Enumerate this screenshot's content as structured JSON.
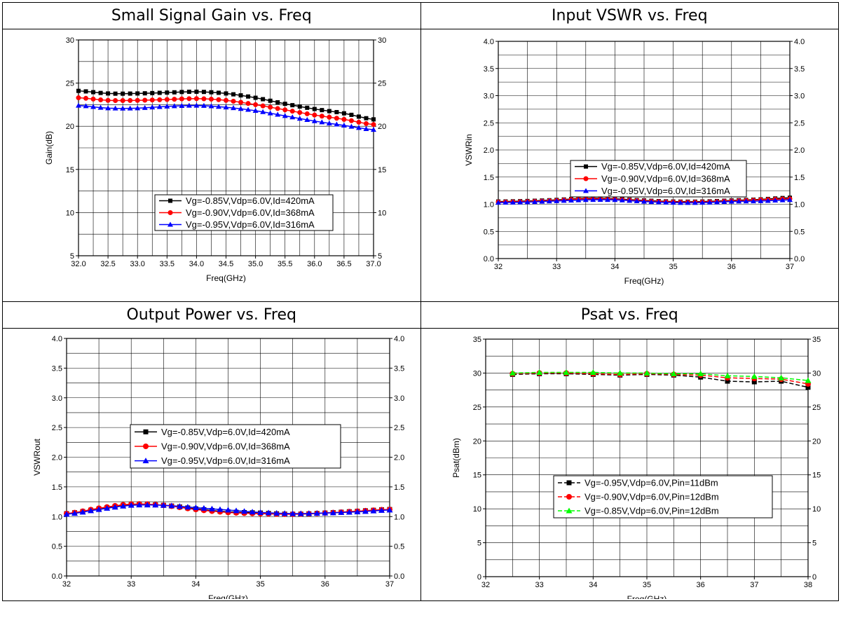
{
  "panels": [
    {
      "title": "Small Signal Gain vs. Freq"
    },
    {
      "title": "Input VSWR vs. Freq"
    },
    {
      "title": "Output Power vs. Freq"
    },
    {
      "title": "Psat vs. Freq"
    }
  ],
  "chart_data": [
    {
      "type": "line",
      "xlabel": "Freq(GHz)",
      "ylabel": "Gain(dB)",
      "xlim": [
        32.0,
        37.0
      ],
      "ylim": [
        5,
        30
      ],
      "xticks": [
        32.0,
        32.5,
        33.0,
        33.5,
        34.0,
        34.5,
        35.0,
        35.5,
        36.0,
        36.5,
        37.0
      ],
      "xtick_labels": [
        "32.0",
        "32.5",
        "33.0",
        "33.5",
        "34.0",
        "34.5",
        "35.0",
        "35.5",
        "36.0",
        "36.5",
        "37.0"
      ],
      "yticks": [
        5,
        10,
        15,
        20,
        25,
        30
      ],
      "ytick_labels": [
        "5",
        "10",
        "15",
        "20",
        "25",
        "30"
      ],
      "grid": true,
      "legend_position": "center",
      "series": [
        {
          "name": "Vg=-0.85V,Vdp=6.0V,Id=420mA",
          "color": "#000000",
          "marker": "square",
          "x": [
            32.0,
            32.5,
            33.0,
            33.5,
            34.0,
            34.5,
            35.0,
            35.5,
            36.0,
            36.5,
            37.0
          ],
          "y": [
            24.1,
            23.8,
            23.8,
            23.9,
            24.0,
            23.8,
            23.3,
            22.6,
            22.0,
            21.5,
            20.8
          ]
        },
        {
          "name": "Vg=-0.90V,Vdp=6.0V,Id=368mA",
          "color": "#ff0000",
          "marker": "circle",
          "x": [
            32.0,
            32.5,
            33.0,
            33.5,
            34.0,
            34.5,
            35.0,
            35.5,
            36.0,
            36.5,
            37.0
          ],
          "y": [
            23.3,
            23.0,
            23.0,
            23.1,
            23.2,
            23.0,
            22.5,
            21.9,
            21.3,
            20.8,
            20.2
          ]
        },
        {
          "name": "Vg=-0.95V,Vdp=6.0V,Id=316mA",
          "color": "#0000ff",
          "marker": "triangle",
          "x": [
            32.0,
            32.5,
            33.0,
            33.5,
            34.0,
            34.5,
            35.0,
            35.5,
            36.0,
            36.5,
            37.0
          ],
          "y": [
            22.4,
            22.1,
            22.1,
            22.3,
            22.4,
            22.2,
            21.8,
            21.2,
            20.6,
            20.1,
            19.6
          ]
        }
      ]
    },
    {
      "type": "line",
      "xlabel": "Freq(GHz)",
      "ylabel": "VSWRin",
      "xlim": [
        32,
        37
      ],
      "ylim": [
        0.0,
        4.0
      ],
      "xticks": [
        32,
        33,
        34,
        35,
        36,
        37
      ],
      "xtick_labels": [
        "32",
        "33",
        "34",
        "35",
        "36",
        "37"
      ],
      "yticks": [
        0.0,
        0.5,
        1.0,
        1.5,
        2.0,
        2.5,
        3.0,
        3.5,
        4.0
      ],
      "ytick_labels": [
        "0.0",
        "0.5",
        "1.0",
        "1.5",
        "2.0",
        "2.5",
        "3.0",
        "3.5",
        "4.0"
      ],
      "grid": true,
      "legend_position": "upper center",
      "series": [
        {
          "name": "Vg=-0.85V,Vdp=6.0V,Id=420mA",
          "color": "#000000",
          "marker": "square",
          "x": [
            32.0,
            32.5,
            33.0,
            33.5,
            34.0,
            34.5,
            35.0,
            35.5,
            36.0,
            36.5,
            37.0
          ],
          "y": [
            1.05,
            1.06,
            1.08,
            1.11,
            1.1,
            1.07,
            1.05,
            1.05,
            1.07,
            1.09,
            1.12
          ]
        },
        {
          "name": "Vg=-0.90V,Vdp=6.0V,Id=368mA",
          "color": "#ff0000",
          "marker": "circle",
          "x": [
            32.0,
            32.5,
            33.0,
            33.5,
            34.0,
            34.5,
            35.0,
            35.5,
            36.0,
            36.5,
            37.0
          ],
          "y": [
            1.04,
            1.05,
            1.07,
            1.1,
            1.09,
            1.06,
            1.04,
            1.04,
            1.06,
            1.08,
            1.1
          ]
        },
        {
          "name": "Vg=-0.95V,Vdp=6.0V,Id=316mA",
          "color": "#0000ff",
          "marker": "triangle",
          "x": [
            32.0,
            32.5,
            33.0,
            33.5,
            34.0,
            34.5,
            35.0,
            35.5,
            36.0,
            36.5,
            37.0
          ],
          "y": [
            1.03,
            1.04,
            1.06,
            1.08,
            1.08,
            1.05,
            1.03,
            1.03,
            1.05,
            1.06,
            1.08
          ]
        }
      ]
    },
    {
      "type": "line",
      "xlabel": "Freq(GHz)",
      "ylabel": "VSWRout",
      "xlim": [
        32,
        37
      ],
      "ylim": [
        0.0,
        4.0
      ],
      "xticks": [
        32,
        33,
        34,
        35,
        36,
        37
      ],
      "xtick_labels": [
        "32",
        "33",
        "34",
        "35",
        "36",
        "37"
      ],
      "yticks": [
        0.0,
        0.5,
        1.0,
        1.5,
        2.0,
        2.5,
        3.0,
        3.5,
        4.0
      ],
      "ytick_labels": [
        "0.0",
        "0.5",
        "1.0",
        "1.5",
        "2.0",
        "2.5",
        "3.0",
        "3.5",
        "4.0"
      ],
      "grid": true,
      "legend_position": "center",
      "series": [
        {
          "name": "Vg=-0.85V,Vdp=6.0V,Id=420mA",
          "color": "#000000",
          "marker": "square",
          "x": [
            32.0,
            32.5,
            33.0,
            33.5,
            34.0,
            34.5,
            35.0,
            35.5,
            36.0,
            36.5,
            37.0
          ],
          "y": [
            1.05,
            1.13,
            1.2,
            1.19,
            1.13,
            1.08,
            1.06,
            1.04,
            1.06,
            1.09,
            1.12
          ]
        },
        {
          "name": "Vg=-0.90V,Vdp=6.0V,Id=368mA",
          "color": "#ff0000",
          "marker": "circle",
          "x": [
            32.0,
            32.5,
            33.0,
            33.5,
            34.0,
            34.5,
            35.0,
            35.5,
            36.0,
            36.5,
            37.0
          ],
          "y": [
            1.05,
            1.14,
            1.21,
            1.19,
            1.12,
            1.07,
            1.05,
            1.04,
            1.06,
            1.09,
            1.12
          ]
        },
        {
          "name": "Vg=-0.95V,Vdp=6.0V,Id=316mA",
          "color": "#0000ff",
          "marker": "triangle",
          "x": [
            32.0,
            32.5,
            33.0,
            33.5,
            34.0,
            34.5,
            35.0,
            35.5,
            36.0,
            36.5,
            37.0
          ],
          "y": [
            1.04,
            1.12,
            1.19,
            1.19,
            1.15,
            1.11,
            1.07,
            1.05,
            1.06,
            1.08,
            1.11
          ]
        }
      ]
    },
    {
      "type": "line",
      "xlabel": "Freq(GHz)",
      "ylabel": "Psat(dBm)",
      "xlim": [
        32,
        38
      ],
      "ylim": [
        0,
        35
      ],
      "xticks": [
        32,
        33,
        34,
        35,
        36,
        37,
        38
      ],
      "xtick_labels": [
        "32",
        "33",
        "34",
        "35",
        "36",
        "37",
        "38"
      ],
      "yticks": [
        0,
        5,
        10,
        15,
        20,
        25,
        30,
        35
      ],
      "ytick_labels": [
        "0",
        "5",
        "10",
        "15",
        "20",
        "25",
        "30",
        "35"
      ],
      "grid": true,
      "legend_position": "lower center",
      "series": [
        {
          "name": "Vg=-0.95V,Vdp=6.0V,Pin=11dBm",
          "color": "#000000",
          "marker": "square",
          "dash": true,
          "x": [
            32.5,
            33.0,
            33.5,
            34.0,
            34.5,
            35.0,
            35.5,
            36.0,
            36.5,
            37.0,
            37.5,
            38.0
          ],
          "y": [
            29.8,
            29.9,
            29.9,
            29.8,
            29.7,
            29.8,
            29.7,
            29.4,
            28.8,
            28.7,
            28.8,
            27.9
          ]
        },
        {
          "name": "Vg=-0.90V,Vdp=6.0V,Pin=12dBm",
          "color": "#ff0000",
          "marker": "circle",
          "dash": true,
          "x": [
            32.5,
            33.0,
            33.5,
            34.0,
            34.5,
            35.0,
            35.5,
            36.0,
            36.5,
            37.0,
            37.5,
            38.0
          ],
          "y": [
            29.9,
            30.0,
            30.0,
            29.9,
            29.8,
            29.9,
            29.8,
            29.7,
            29.3,
            29.2,
            29.1,
            28.4
          ]
        },
        {
          "name": "Vg=-0.85V,Vdp=6.0V,Pin=12dBm",
          "color": "#00ff00",
          "marker": "triangle",
          "dash": true,
          "x": [
            32.5,
            33.0,
            33.5,
            34.0,
            34.5,
            35.0,
            35.5,
            36.0,
            36.5,
            37.0,
            37.5,
            38.0
          ],
          "y": [
            30.0,
            30.1,
            30.1,
            30.1,
            30.0,
            30.0,
            29.9,
            29.9,
            29.6,
            29.5,
            29.3,
            28.9
          ]
        }
      ]
    }
  ]
}
